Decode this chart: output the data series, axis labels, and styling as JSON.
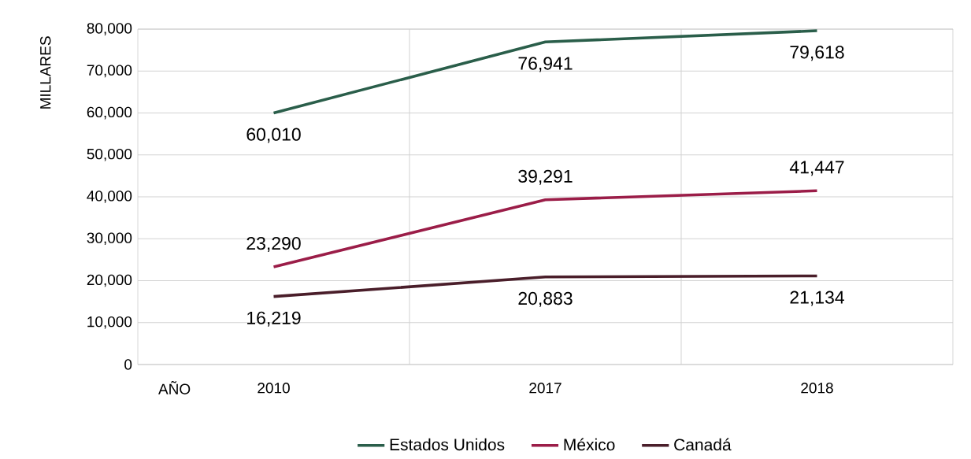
{
  "chart_data": {
    "type": "line",
    "xlabel": "AÑO",
    "ylabel": "MILLARES",
    "categories": [
      "2010",
      "2017",
      "2018"
    ],
    "series": [
      {
        "name": "Estados Unidos",
        "color": "#2a5e4a",
        "values": [
          60010,
          76941,
          79618
        ],
        "value_labels": [
          "60,010",
          "76,941",
          "79,618"
        ]
      },
      {
        "name": "México",
        "color": "#9b1d48",
        "values": [
          23290,
          39291,
          41447
        ],
        "value_labels": [
          "23,290",
          "39,291",
          "41,447"
        ]
      },
      {
        "name": "Canadá",
        "color": "#4a1e2a",
        "values": [
          16219,
          20883,
          21134
        ],
        "value_labels": [
          "16,219",
          "20,883",
          "21,134"
        ]
      }
    ],
    "ylim": [
      0,
      80000
    ],
    "yticks": [
      {
        "value": 0,
        "label": "0"
      },
      {
        "value": 10000,
        "label": "10,000"
      },
      {
        "value": 20000,
        "label": "20,000"
      },
      {
        "value": 30000,
        "label": "30,000"
      },
      {
        "value": 40000,
        "label": "40,000"
      },
      {
        "value": 50000,
        "label": "50,000"
      },
      {
        "value": 60000,
        "label": "60,000"
      },
      {
        "value": 70000,
        "label": "70,000"
      },
      {
        "value": 80000,
        "label": "80,000"
      }
    ],
    "grid": true,
    "legend": "bottom",
    "marker": "none",
    "line_style": "solid"
  }
}
